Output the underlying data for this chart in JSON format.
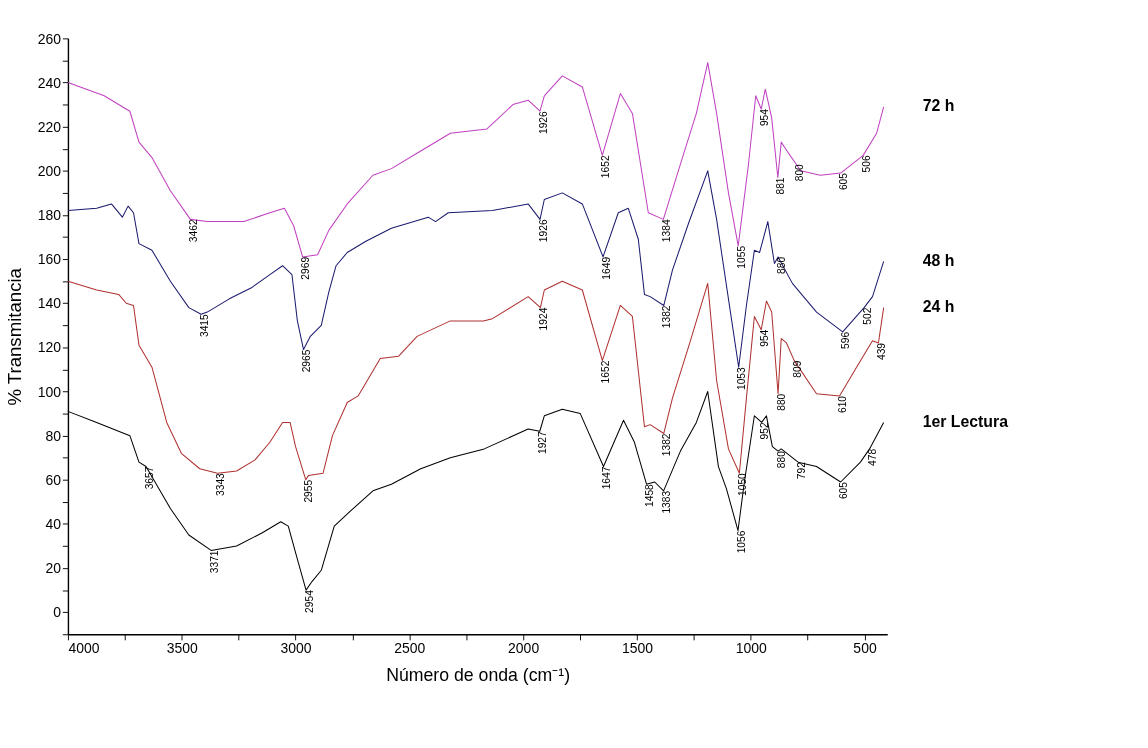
{
  "chart_data": {
    "type": "line",
    "xlabel": "Número de onda (cm⁻¹)",
    "ylabel": "% Transmitancia",
    "xlim": [
      4000,
      400
    ],
    "ylim": [
      -10,
      260
    ],
    "xticks": [
      4000,
      {
        "value": 3750,
        "label": null
      },
      3500,
      {
        "value": 3250,
        "label": null
      },
      3000,
      {
        "value": 2750,
        "label": null
      },
      2500,
      {
        "value": 2250,
        "label": null
      },
      2000,
      {
        "value": 1750,
        "label": null
      },
      1500,
      {
        "value": 1250,
        "label": null
      },
      1000,
      {
        "value": 750,
        "label": null
      },
      500
    ],
    "yticks": [
      {
        "value": -10,
        "label": null
      },
      0,
      {
        "value": 10,
        "label": null
      },
      20,
      {
        "value": 30,
        "label": null
      },
      40,
      {
        "value": 50,
        "label": null
      },
      60,
      {
        "value": 70,
        "label": null
      },
      80,
      {
        "value": 90,
        "label": null
      },
      100,
      {
        "value": 110,
        "label": null
      },
      120,
      {
        "value": 130,
        "label": null
      },
      140,
      {
        "value": 150,
        "label": null
      },
      160,
      {
        "value": 170,
        "label": null
      },
      180,
      {
        "value": 190,
        "label": null
      },
      200,
      {
        "value": 210,
        "label": null
      },
      220,
      {
        "value": 230,
        "label": null
      },
      240,
      {
        "value": 250,
        "label": null
      },
      260
    ],
    "grid": false,
    "marker": "none",
    "line_style": "solid",
    "series": [
      {
        "name": "72 h",
        "color": "#c040c0",
        "x": [
          4000,
          3841,
          3728,
          3688,
          3631,
          3550,
          3462,
          3388,
          3227,
          3113,
          3049,
          3008,
          2969,
          2903,
          2854,
          2773,
          2660,
          2579,
          2450,
          2320,
          2159,
          2045,
          1978,
          1926,
          1907,
          1828,
          1740,
          1652,
          1573,
          1520,
          1450,
          1384,
          1309,
          1239,
          1189,
          1150,
          1098,
          1055,
          1010,
          978,
          954,
          936,
          908,
          881,
          866,
          834,
          800,
          781,
          694,
          605,
          506,
          447,
          416
        ],
        "values": [
          240,
          234,
          227,
          213,
          206,
          191,
          178,
          177,
          177,
          181,
          183,
          175,
          161,
          162,
          173,
          185,
          198,
          201,
          209,
          217,
          219,
          230,
          232,
          227,
          234,
          243,
          238,
          207,
          235,
          226,
          181,
          178,
          203,
          226,
          249,
          226,
          190,
          166,
          203,
          234,
          228,
          237,
          224,
          197,
          213,
          208,
          203,
          200,
          198,
          199,
          207,
          217,
          229
        ]
      },
      {
        "name": "48 h",
        "color": "#1a1a6e",
        "x": [
          4000,
          3874,
          3809,
          3761,
          3736,
          3712,
          3688,
          3631,
          3550,
          3469,
          3415,
          3388,
          3291,
          3194,
          3113,
          3057,
          3016,
          2992,
          2965,
          2935,
          2887,
          2854,
          2822,
          2773,
          2693,
          2579,
          2417,
          2385,
          2329,
          2135,
          1978,
          1926,
          1907,
          1828,
          1740,
          1649,
          1582,
          1538,
          1494,
          1467,
          1442,
          1382,
          1344,
          1274,
          1189,
          1150,
          1098,
          1053,
          1019,
          984,
          961,
          925,
          896,
          880,
          817,
          711,
          596,
          502,
          465,
          416
        ],
        "values": [
          182,
          183,
          185,
          179,
          184,
          181,
          167,
          164,
          150,
          138,
          135,
          136,
          142,
          147,
          153,
          157,
          153,
          132,
          119,
          125,
          130,
          145,
          157,
          163,
          168,
          174,
          179,
          177,
          181,
          182,
          185,
          178,
          187,
          190,
          185,
          161,
          181,
          183,
          169,
          144,
          143,
          139,
          155,
          176,
          200,
          178,
          142,
          111,
          139,
          164,
          163,
          177,
          158,
          161,
          149,
          136,
          127,
          138,
          143,
          159
        ]
      },
      {
        "name": "24 h",
        "color": "#b03030",
        "x": [
          4000,
          3874,
          3777,
          3744,
          3712,
          3688,
          3631,
          3566,
          3502,
          3421,
          3343,
          3259,
          3178,
          3113,
          3057,
          3024,
          3000,
          2955,
          2943,
          2879,
          2838,
          2773,
          2725,
          2628,
          2547,
          2466,
          2320,
          2175,
          2135,
          1978,
          1924,
          1907,
          1828,
          1740,
          1652,
          1573,
          1520,
          1467,
          1442,
          1382,
          1344,
          1274,
          1189,
          1150,
          1098,
          1050,
          1019,
          984,
          954,
          931,
          908,
          880,
          866,
          843,
          809,
          711,
          610,
          535,
          465,
          439,
          416
        ],
        "values": [
          150,
          146,
          144,
          140,
          139,
          121,
          111,
          86,
          72,
          65,
          63,
          64,
          69,
          77,
          86,
          86,
          75,
          60,
          62,
          63,
          80,
          95,
          98,
          115,
          116,
          125,
          132,
          132,
          133,
          143,
          138,
          146,
          150,
          146,
          114,
          139,
          134,
          84,
          85,
          81,
          97,
          120,
          149,
          105,
          74,
          63,
          97,
          134,
          128,
          141,
          136,
          99,
          124,
          122,
          114,
          99,
          98,
          111,
          123,
          122,
          138
        ]
      },
      {
        "name": "1er Lectura",
        "color": "#000000",
        "x": [
          4000,
          3874,
          3728,
          3688,
          3657,
          3550,
          3469,
          3371,
          3259,
          3146,
          3065,
          3032,
          3000,
          2954,
          2927,
          2887,
          2830,
          2757,
          2660,
          2579,
          2450,
          2320,
          2171,
          1978,
          1927,
          1907,
          1828,
          1749,
          1647,
          1559,
          1511,
          1458,
          1422,
          1383,
          1309,
          1239,
          1189,
          1142,
          1107,
          1056,
          1028,
          984,
          952,
          931,
          905,
          880,
          866,
          792,
          711,
          605,
          518,
          478,
          416
        ],
        "values": [
          91,
          86,
          80,
          68,
          66,
          47,
          35,
          28,
          30,
          36,
          41,
          39,
          27,
          10,
          14,
          19,
          39,
          46,
          55,
          58,
          65,
          70,
          74,
          83,
          82,
          89,
          92,
          90,
          66,
          87,
          77,
          58,
          59,
          55,
          73,
          86,
          100,
          66,
          56,
          37,
          59,
          89,
          86,
          89,
          75,
          73,
          74,
          68,
          66,
          59,
          68,
          74,
          86
        ]
      }
    ],
    "annotations": [
      {
        "text": "3462",
        "x": 3462,
        "y": 178
      },
      {
        "text": "2969",
        "x": 2969,
        "y": 161
      },
      {
        "text": "1926",
        "x": 1926,
        "y": 227
      },
      {
        "text": "1652",
        "x": 1652,
        "y": 207
      },
      {
        "text": "1384",
        "x": 1384,
        "y": 178
      },
      {
        "text": "1055",
        "x": 1055,
        "y": 166
      },
      {
        "text": "954",
        "x": 954,
        "y": 228
      },
      {
        "text": "881",
        "x": 881,
        "y": 197
      },
      {
        "text": "800",
        "x": 800,
        "y": 203
      },
      {
        "text": "605",
        "x": 605,
        "y": 199
      },
      {
        "text": "506",
        "x": 506,
        "y": 207
      },
      {
        "text": "3415",
        "x": 3415,
        "y": 135
      },
      {
        "text": "2965",
        "x": 2965,
        "y": 119
      },
      {
        "text": "1926",
        "x": 1926,
        "y": 178
      },
      {
        "text": "1649",
        "x": 1649,
        "y": 161
      },
      {
        "text": "1382",
        "x": 1382,
        "y": 139
      },
      {
        "text": "1053",
        "x": 1053,
        "y": 111
      },
      {
        "text": "880",
        "x": 880,
        "y": 161
      },
      {
        "text": "596",
        "x": 596,
        "y": 127
      },
      {
        "text": "502",
        "x": 502,
        "y": 138
      },
      {
        "text": "3343",
        "x": 3343,
        "y": 63
      },
      {
        "text": "2955",
        "x": 2955,
        "y": 60
      },
      {
        "text": "1924",
        "x": 1924,
        "y": 138
      },
      {
        "text": "1652",
        "x": 1652,
        "y": 114
      },
      {
        "text": "1382",
        "x": 1382,
        "y": 81
      },
      {
        "text": "1050",
        "x": 1050,
        "y": 63
      },
      {
        "text": "954",
        "x": 954,
        "y": 128
      },
      {
        "text": "880",
        "x": 880,
        "y": 99
      },
      {
        "text": "809",
        "x": 809,
        "y": 114
      },
      {
        "text": "610",
        "x": 610,
        "y": 98
      },
      {
        "text": "439",
        "x": 439,
        "y": 122
      },
      {
        "text": "3657",
        "x": 3657,
        "y": 66
      },
      {
        "text": "3371",
        "x": 3371,
        "y": 28
      },
      {
        "text": "2954",
        "x": 2954,
        "y": 10
      },
      {
        "text": "1927",
        "x": 1927,
        "y": 82
      },
      {
        "text": "1647",
        "x": 1647,
        "y": 66
      },
      {
        "text": "1458",
        "x": 1458,
        "y": 58
      },
      {
        "text": "1383",
        "x": 1383,
        "y": 55
      },
      {
        "text": "1056",
        "x": 1056,
        "y": 37
      },
      {
        "text": "952",
        "x": 952,
        "y": 86
      },
      {
        "text": "880",
        "x": 880,
        "y": 73
      },
      {
        "text": "792",
        "x": 792,
        "y": 68
      },
      {
        "text": "605",
        "x": 605,
        "y": 59
      },
      {
        "text": "478",
        "x": 478,
        "y": 74
      }
    ]
  }
}
